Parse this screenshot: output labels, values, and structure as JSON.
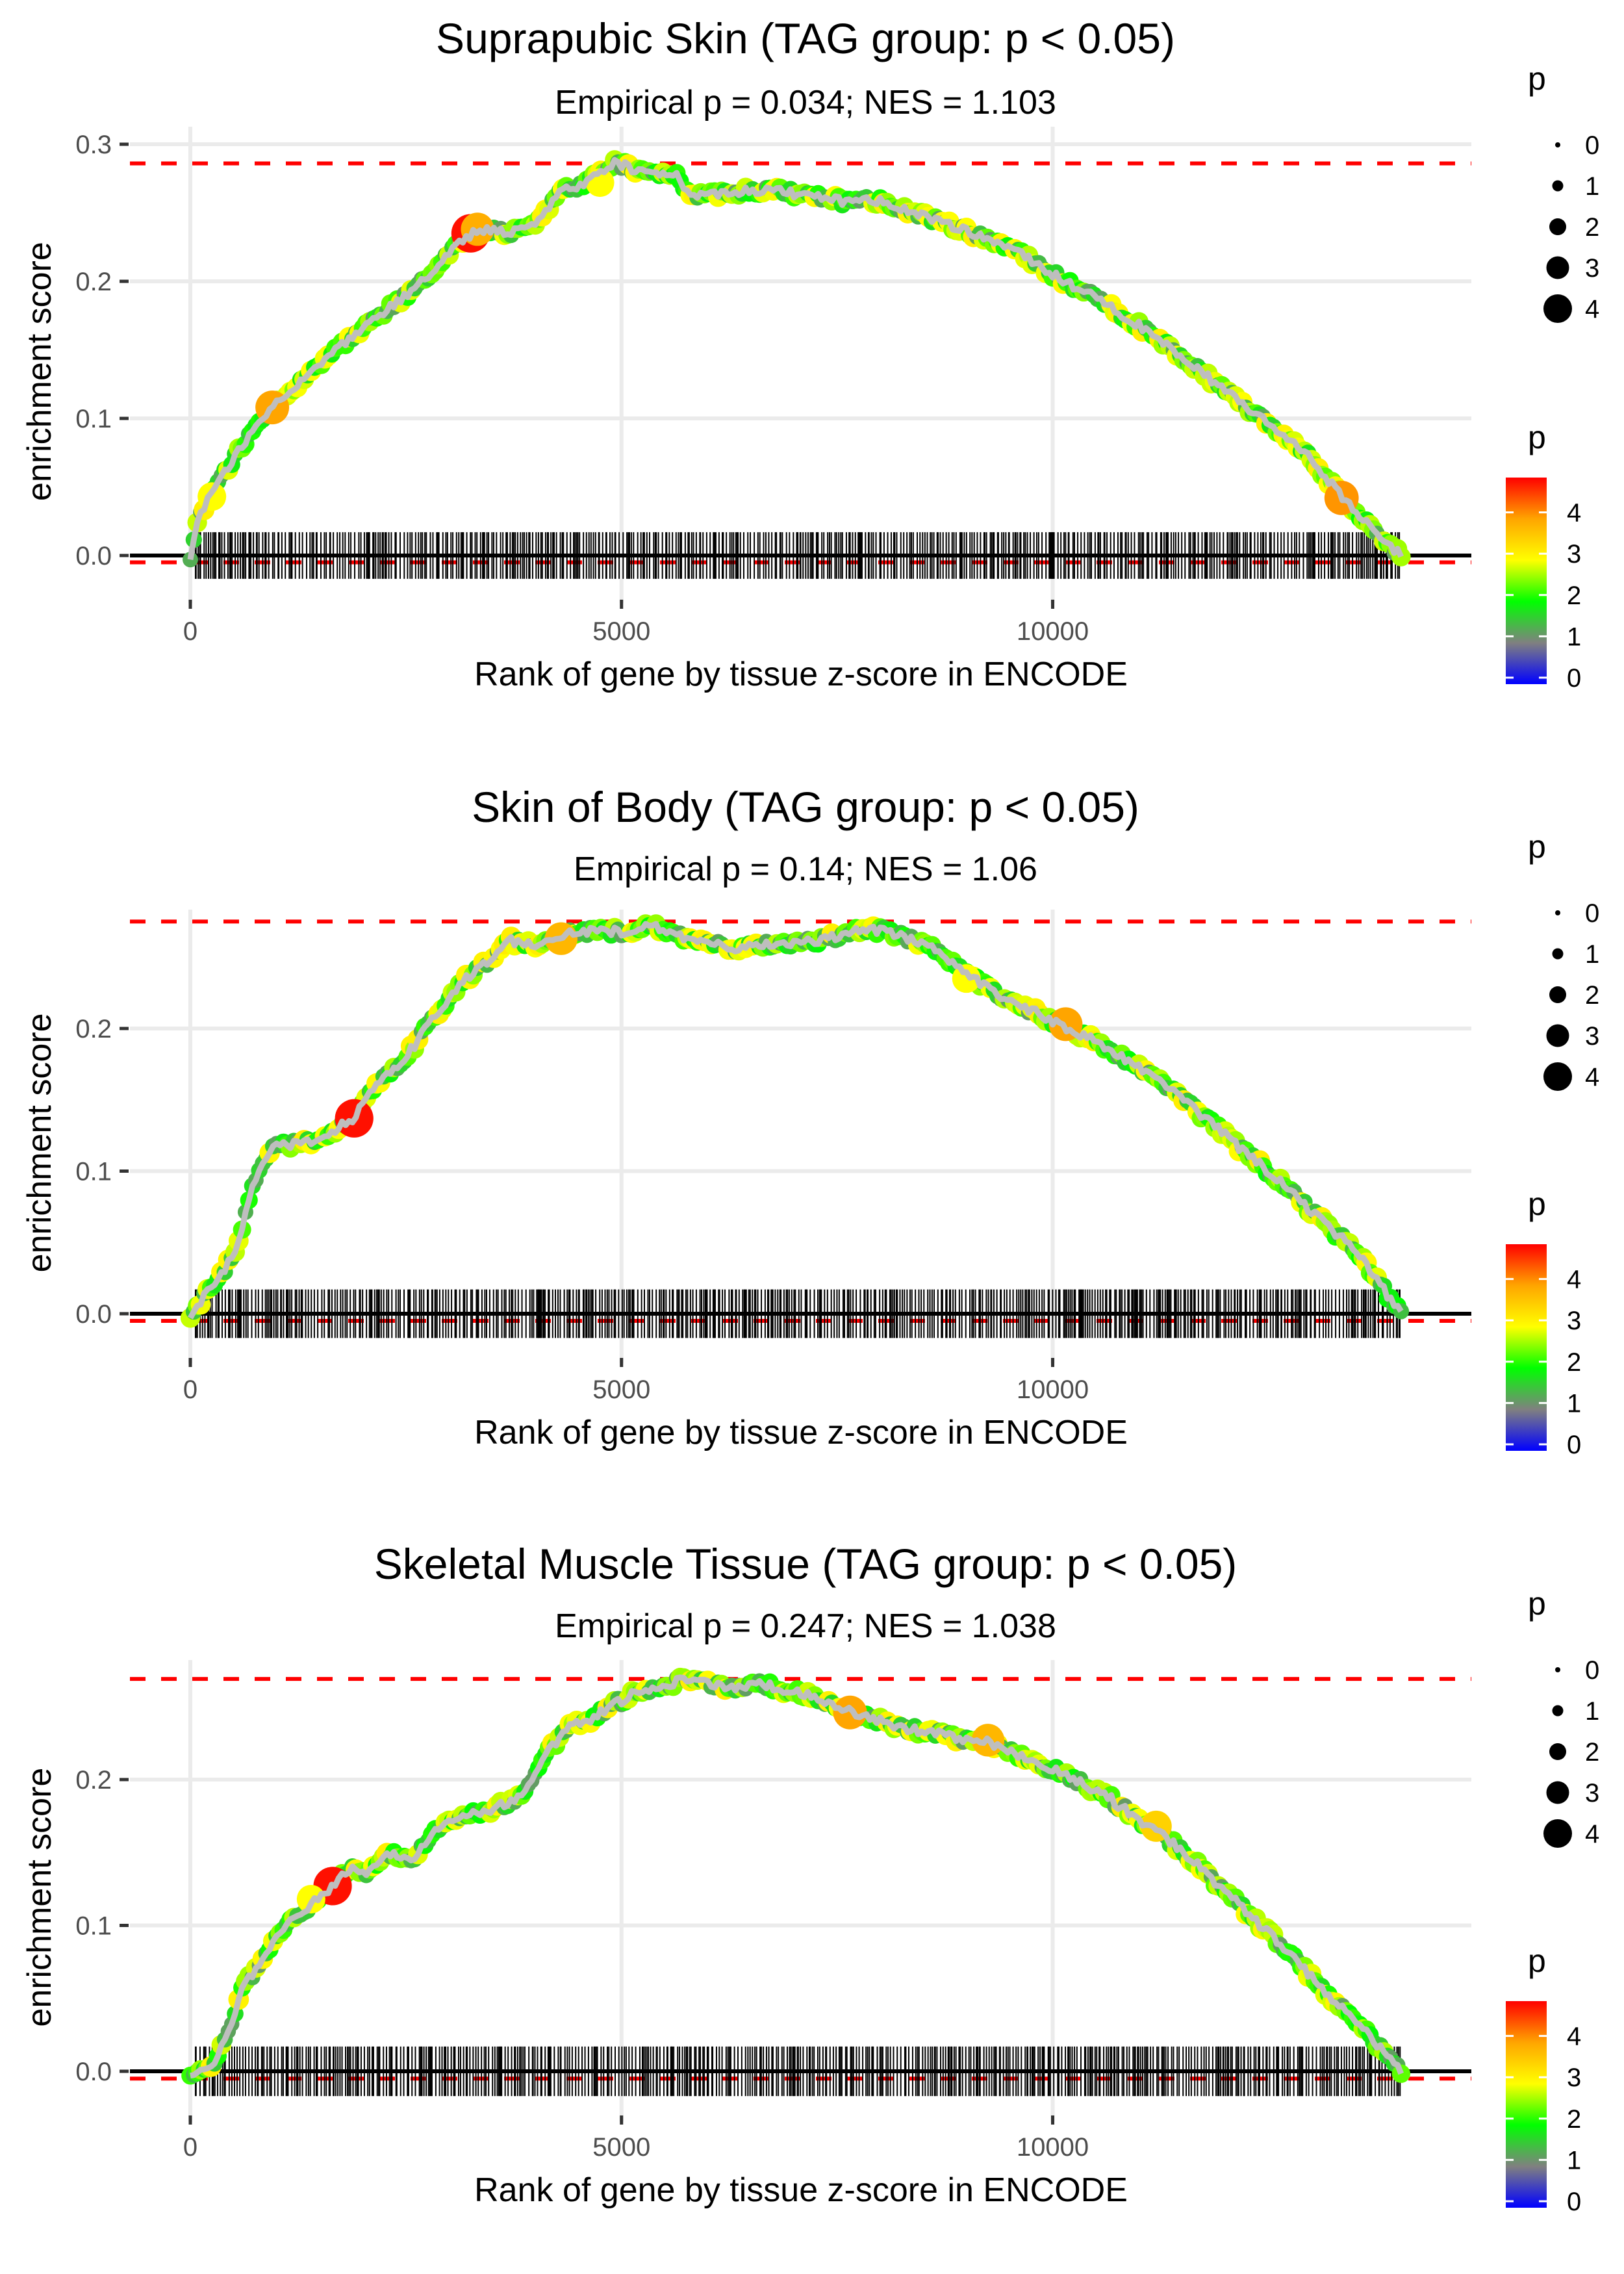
{
  "chart_data": [
    {
      "type": "scatter",
      "title": "Suprapubic Skin (TAG group: p < 0.05)",
      "subtitle": "Empirical p = 0.034; NES = 1.103",
      "xlabel": "Rank of gene by tissue z-score in ENCODE",
      "ylabel": "enrichment score",
      "xlim": [
        -700,
        14600
      ],
      "ylim": [
        -0.03,
        0.3
      ],
      "x_ticks": [
        0,
        5000,
        10000
      ],
      "x_tick_labels": [
        "0",
        "5000",
        "10000"
      ],
      "y_ticks": [
        0.0,
        0.1,
        0.2,
        0.3
      ],
      "y_tick_labels": [
        "0.0",
        "0.1",
        "0.2",
        "0.3"
      ],
      "grid": true,
      "max_es_line": 0.286,
      "min_es_line": -0.005,
      "zero_line": 0,
      "n_genes": 14040,
      "curve_keypoints": {
        "x": [
          0,
          100,
          300,
          600,
          900,
          1100,
          1500,
          1900,
          2300,
          2700,
          3000,
          3200,
          3350,
          3700,
          4000,
          4300,
          4600,
          4950,
          5200,
          5600,
          5800,
          6200,
          6700,
          7200,
          7600,
          7800,
          8400,
          9000,
          9500,
          10000,
          10500,
          11000,
          11500,
          12000,
          12500,
          13000,
          13400,
          13700,
          14040
        ],
        "y": [
          0.0,
          0.03,
          0.05,
          0.08,
          0.105,
          0.118,
          0.14,
          0.16,
          0.18,
          0.2,
          0.22,
          0.232,
          0.238,
          0.236,
          0.242,
          0.265,
          0.272,
          0.287,
          0.279,
          0.28,
          0.262,
          0.265,
          0.267,
          0.262,
          0.258,
          0.262,
          0.25,
          0.237,
          0.225,
          0.205,
          0.188,
          0.168,
          0.145,
          0.12,
          0.097,
          0.07,
          0.04,
          0.02,
          0.0
        ]
      },
      "highlight_points": [
        {
          "x": 3250,
          "y": 0.235,
          "p": 4.9
        },
        {
          "x": 3330,
          "y": 0.238,
          "p": 3.9
        },
        {
          "x": 950,
          "y": 0.108,
          "p": 4.0
        },
        {
          "x": 250,
          "y": 0.043,
          "p": 3.0
        },
        {
          "x": 13350,
          "y": 0.042,
          "p": 4.1
        },
        {
          "x": 4750,
          "y": 0.272,
          "p": 3.0
        }
      ],
      "rug_density": "dense"
    },
    {
      "type": "scatter",
      "title": "Skin of Body (TAG group: p < 0.05)",
      "subtitle": "Empirical p = 0.14; NES = 1.06",
      "xlabel": "Rank of gene by tissue z-score in ENCODE",
      "ylabel": "enrichment score",
      "xlim": [
        -700,
        14600
      ],
      "ylim": [
        -0.03,
        0.275
      ],
      "x_ticks": [
        0,
        5000,
        10000
      ],
      "x_tick_labels": [
        "0",
        "5000",
        "10000"
      ],
      "y_ticks": [
        0.0,
        0.1,
        0.2
      ],
      "y_tick_labels": [
        "0.0",
        "0.1",
        "0.2"
      ],
      "grid": true,
      "max_es_line": 0.275,
      "min_es_line": -0.005,
      "zero_line": 0,
      "n_genes": 14040,
      "curve_keypoints": {
        "x": [
          0,
          200,
          400,
          550,
          700,
          850,
          1000,
          1300,
          1600,
          1900,
          2200,
          2500,
          2800,
          3100,
          3400,
          3700,
          4000,
          4300,
          4600,
          5000,
          5300,
          5700,
          6000,
          6300,
          6600,
          7000,
          7400,
          7800,
          8100,
          8500,
          9000,
          9500,
          10100,
          10600,
          11000,
          11500,
          12000,
          12500,
          13000,
          13500,
          13800,
          14040
        ],
        "y": [
          0.0,
          0.015,
          0.03,
          0.05,
          0.085,
          0.105,
          0.118,
          0.12,
          0.125,
          0.138,
          0.165,
          0.18,
          0.205,
          0.23,
          0.245,
          0.262,
          0.258,
          0.265,
          0.268,
          0.268,
          0.273,
          0.265,
          0.26,
          0.255,
          0.258,
          0.26,
          0.263,
          0.27,
          0.267,
          0.26,
          0.238,
          0.22,
          0.202,
          0.188,
          0.173,
          0.152,
          0.125,
          0.1,
          0.072,
          0.045,
          0.02,
          0.0
        ]
      },
      "highlight_points": [
        {
          "x": 1900,
          "y": 0.137,
          "p": 4.9
        },
        {
          "x": 10150,
          "y": 0.203,
          "p": 4.0
        },
        {
          "x": 4300,
          "y": 0.263,
          "p": 3.8
        },
        {
          "x": 9000,
          "y": 0.235,
          "p": 3.0
        }
      ],
      "rug_density": "dense"
    },
    {
      "type": "scatter",
      "title": "Skeletal Muscle Tissue (TAG group: p < 0.05)",
      "subtitle": "Empirical p = 0.247; NES = 1.038",
      "xlabel": "Rank of gene by tissue z-score in ENCODE",
      "ylabel": "enrichment score",
      "xlim": [
        -700,
        14600
      ],
      "ylim": [
        -0.03,
        0.282
      ],
      "x_ticks": [
        0,
        5000,
        10000
      ],
      "x_tick_labels": [
        "0",
        "5000",
        "10000"
      ],
      "y_ticks": [
        0.0,
        0.1,
        0.2
      ],
      "y_tick_labels": [
        "0.0",
        "0.1",
        "0.2"
      ],
      "grid": true,
      "max_es_line": 0.269,
      "min_es_line": -0.005,
      "zero_line": 0,
      "n_genes": 14040,
      "curve_keypoints": {
        "x": [
          0,
          200,
          400,
          600,
          900,
          1200,
          1500,
          1700,
          1850,
          2050,
          2300,
          2600,
          2900,
          3200,
          3500,
          3800,
          4100,
          4400,
          4700,
          5100,
          5500,
          5850,
          6200,
          6600,
          7000,
          7300,
          7700,
          8100,
          8500,
          9000,
          9300,
          9700,
          10100,
          10600,
          11000,
          11500,
          12000,
          12500,
          13000,
          13500,
          13800,
          14040
        ],
        "y": [
          0.0,
          0.0,
          0.02,
          0.055,
          0.085,
          0.105,
          0.12,
          0.128,
          0.14,
          0.135,
          0.15,
          0.145,
          0.17,
          0.177,
          0.18,
          0.187,
          0.215,
          0.238,
          0.243,
          0.258,
          0.265,
          0.27,
          0.262,
          0.266,
          0.26,
          0.256,
          0.245,
          0.238,
          0.233,
          0.228,
          0.225,
          0.215,
          0.205,
          0.19,
          0.172,
          0.152,
          0.123,
          0.095,
          0.065,
          0.035,
          0.015,
          0.0
        ]
      },
      "highlight_points": [
        {
          "x": 1650,
          "y": 0.127,
          "p": 4.9
        },
        {
          "x": 7650,
          "y": 0.246,
          "p": 4.0
        },
        {
          "x": 9250,
          "y": 0.227,
          "p": 3.8
        },
        {
          "x": 11200,
          "y": 0.168,
          "p": 3.5
        },
        {
          "x": 1400,
          "y": 0.118,
          "p": 3.0
        }
      ],
      "rug_density": "dense"
    }
  ],
  "legends": {
    "size_legend": {
      "title": "p",
      "entries": [
        "0",
        "1",
        "2",
        "3",
        "4"
      ]
    },
    "color_legend": {
      "title": "p",
      "labels": [
        "4",
        "3",
        "2",
        "1",
        "0"
      ],
      "colors": [
        "#0000ff",
        "#808080",
        "#00ff00",
        "#ffff00",
        "#ff0000"
      ],
      "max": 5
    }
  },
  "colors": {
    "curve_gray": "#bebebe",
    "dashed_line": "#ff0000",
    "grid": "#ebebeb",
    "rug": "#000000"
  }
}
